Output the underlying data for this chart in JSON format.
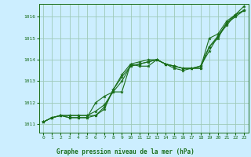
{
  "title": "",
  "xlabel": "Graphe pression niveau de la mer (hPa)",
  "ylabel": "",
  "xlim": [
    -0.5,
    23.5
  ],
  "ylim": [
    1010.6,
    1016.6
  ],
  "yticks": [
    1011,
    1012,
    1013,
    1014,
    1015,
    1016
  ],
  "xticks": [
    0,
    1,
    2,
    3,
    4,
    5,
    6,
    7,
    8,
    9,
    10,
    11,
    12,
    13,
    14,
    15,
    16,
    17,
    18,
    19,
    20,
    21,
    22,
    23
  ],
  "background_color": "#cceeff",
  "plot_bg_color": "#d6eef5",
  "grid_color": "#9ec9b8",
  "line_color": "#1a6e1a",
  "marker_color": "#1a6e1a",
  "line1_y": [
    1011.1,
    1011.3,
    1011.4,
    1011.4,
    1011.4,
    1011.4,
    1011.4,
    1011.7,
    1012.6,
    1013.3,
    1013.8,
    1013.9,
    1014.0,
    1014.0,
    1013.8,
    1013.7,
    1013.6,
    1013.6,
    1013.6,
    1015.0,
    1015.2,
    1015.8,
    1016.1,
    1016.3
  ],
  "line2_y": [
    1011.1,
    1011.3,
    1011.4,
    1011.4,
    1011.4,
    1011.4,
    1011.6,
    1011.9,
    1012.5,
    1013.0,
    1013.7,
    1013.8,
    1013.9,
    1014.0,
    1013.8,
    1013.7,
    1013.6,
    1013.6,
    1013.6,
    1014.6,
    1015.1,
    1015.7,
    1016.0,
    1016.3
  ],
  "line3_y": [
    1011.1,
    1011.3,
    1011.4,
    1011.3,
    1011.3,
    1011.3,
    1012.0,
    1012.3,
    1012.5,
    1012.5,
    1013.8,
    1013.7,
    1013.7,
    1014.0,
    1013.8,
    1013.7,
    1013.6,
    1013.6,
    1013.7,
    1014.4,
    1015.1,
    1015.6,
    1016.1,
    1016.5
  ],
  "line4_y": [
    1011.1,
    1011.3,
    1011.4,
    1011.3,
    1011.3,
    1011.3,
    1011.4,
    1011.8,
    1012.6,
    1013.2,
    1013.7,
    1013.8,
    1013.9,
    1014.0,
    1013.8,
    1013.6,
    1013.5,
    1013.6,
    1013.7,
    1014.6,
    1015.0,
    1015.7,
    1016.1,
    1016.3
  ]
}
